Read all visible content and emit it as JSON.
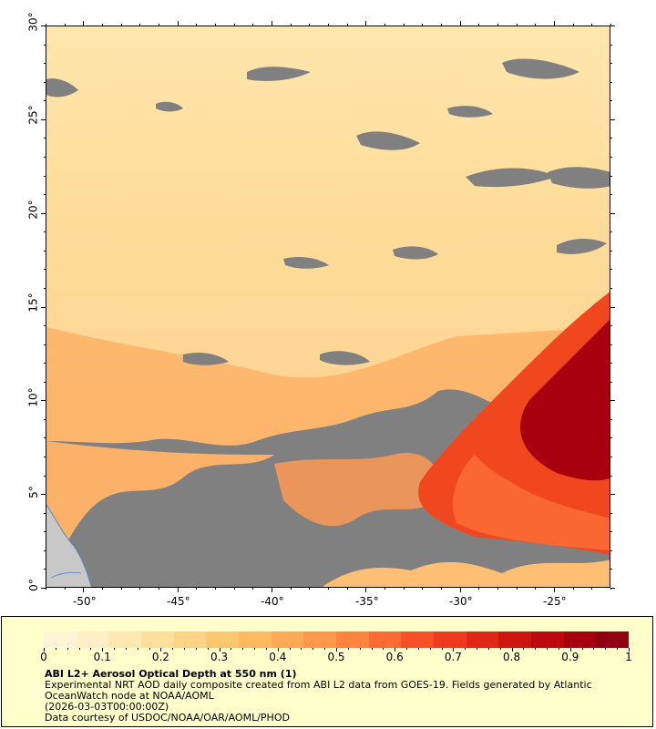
{
  "map": {
    "longitude_ticks": [
      "-50°",
      "-45°",
      "-40°",
      "-35°",
      "-30°",
      "-25°"
    ],
    "latitude_ticks": [
      "0°",
      "5°",
      "10°",
      "15°",
      "20°",
      "25°",
      "30°"
    ],
    "no_data_color": "#808080",
    "land_color": "#c8c8c8",
    "coastline_color": "#5b86c4"
  },
  "legend": {
    "colorbar_ticks": [
      "0",
      "0.1",
      "0.2",
      "0.3",
      "0.4",
      "0.5",
      "0.6",
      "0.7",
      "0.8",
      "0.9",
      "1"
    ],
    "colorbar_colors": [
      "#fff5d6",
      "#ffefc6",
      "#ffe8b2",
      "#ffdf9c",
      "#ffd487",
      "#fec873",
      "#feba62",
      "#fda956",
      "#fd974b",
      "#fc8440",
      "#fb6c34",
      "#f65128",
      "#ec3b1e",
      "#de2716",
      "#ce1610",
      "#bb0a0d",
      "#a5000f",
      "#8e0012"
    ],
    "title": "ABI L2+ Aerosol Optical Depth at 550 nm (1)",
    "line1": "Experimental NRT AOD daily composite created from ABI L2 data from GOES-19. Fields generated by Atlantic",
    "line2": "OceanWatch node at NOAA/AOML",
    "line3": "(2026-03-03T00:00:00Z)",
    "line4": "Data courtesy of USDOC/NOAA/OAR/AOML/PHOD"
  }
}
